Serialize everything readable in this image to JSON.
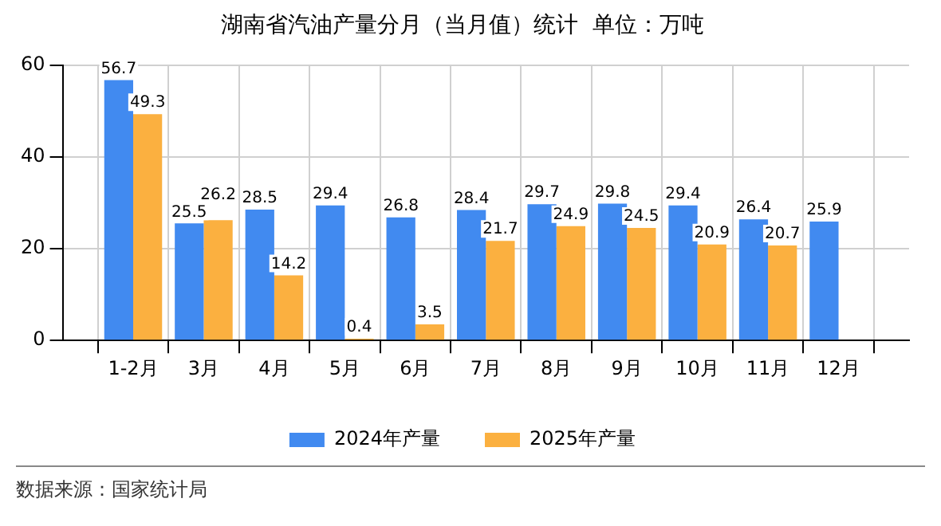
{
  "chart_data": {
    "type": "bar",
    "title": "湖南省汽油产量分月（当月值）统计  单位：万吨",
    "categories": [
      "1-2月",
      "3月",
      "4月",
      "5月",
      "6月",
      "7月",
      "8月",
      "9月",
      "10月",
      "11月",
      "12月"
    ],
    "series": [
      {
        "name": "2024年产量",
        "color": "#418af0",
        "values": [
          56.7,
          25.5,
          28.5,
          29.4,
          26.8,
          28.4,
          29.7,
          29.8,
          29.4,
          26.4,
          25.9
        ]
      },
      {
        "name": "2025年产量",
        "color": "#fbb040",
        "values": [
          49.3,
          26.2,
          14.2,
          0.4,
          3.5,
          21.7,
          24.9,
          24.5,
          20.9,
          20.7,
          null
        ]
      }
    ],
    "ylim": [
      0,
      60
    ],
    "yticks": [
      0,
      20,
      40,
      60
    ],
    "grid": true,
    "legend": "bottom",
    "data_labels": true,
    "annotations": [
      "数据来源：国家统计局"
    ]
  }
}
